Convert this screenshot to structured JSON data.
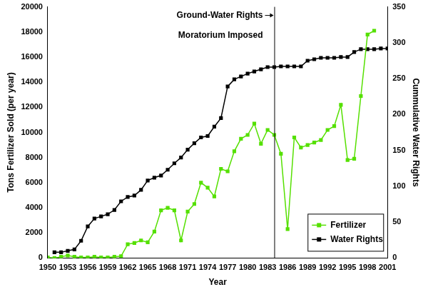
{
  "chart_data": {
    "type": "line",
    "x_label": "Year",
    "y_label": "Tons Fertilizer Sold (per year)",
    "y2_label": "Cummulative Water Rights",
    "x": [
      1950,
      1951,
      1952,
      1953,
      1954,
      1955,
      1956,
      1957,
      1958,
      1959,
      1960,
      1961,
      1962,
      1963,
      1964,
      1965,
      1966,
      1967,
      1968,
      1969,
      1970,
      1971,
      1972,
      1973,
      1974,
      1975,
      1976,
      1977,
      1978,
      1979,
      1980,
      1981,
      1982,
      1983,
      1984,
      1985,
      1986,
      1987,
      1988,
      1989,
      1990,
      1991,
      1992,
      1993,
      1994,
      1995,
      1996,
      1997,
      1998,
      1999,
      2000,
      2001
    ],
    "xlim": [
      1950,
      2001
    ],
    "xticks": [
      1950,
      1953,
      1956,
      1959,
      1962,
      1965,
      1968,
      1971,
      1974,
      1977,
      1980,
      1983,
      1986,
      1989,
      1992,
      1995,
      1998,
      2001
    ],
    "ylim": [
      0,
      20000
    ],
    "yticks": [
      0,
      2000,
      4000,
      6000,
      8000,
      10000,
      12000,
      14000,
      16000,
      18000,
      20000
    ],
    "y2lim": [
      0,
      350
    ],
    "y2ticks": [
      0,
      50,
      100,
      150,
      200,
      250,
      300,
      350
    ],
    "grid": false,
    "legend": "lower right",
    "series": [
      {
        "name": "Fertilizer",
        "color": "#55e000",
        "marker": "square",
        "axis": "y",
        "values": [
          50,
          0,
          100,
          200,
          100,
          50,
          50,
          100,
          50,
          50,
          100,
          150,
          1100,
          1200,
          1400,
          1250,
          2100,
          3800,
          4000,
          3800,
          1400,
          3700,
          4300,
          6000,
          5600,
          4900,
          7100,
          6900,
          8500,
          9500,
          9800,
          10700,
          9100,
          10200,
          9800,
          8300,
          2300,
          9600,
          8800,
          9000,
          9200,
          9400,
          10200,
          10500,
          12200,
          7800,
          7900,
          12900,
          17800,
          18100,
          null,
          null
        ]
      },
      {
        "name": "Water Rights",
        "color": "#000000",
        "marker": "square",
        "axis": "y2",
        "values": [
          null,
          8,
          8,
          10,
          12,
          24,
          44,
          55,
          58,
          61,
          67,
          79,
          85,
          87,
          95,
          108,
          112,
          115,
          123,
          132,
          140,
          151,
          160,
          168,
          170,
          183,
          195,
          239,
          249,
          253,
          257,
          260,
          263,
          266,
          266,
          267,
          267,
          267,
          267,
          275,
          277,
          279,
          279,
          279,
          280,
          280,
          287,
          291,
          291,
          291,
          292,
          292
        ]
      }
    ],
    "annotations": [
      {
        "x": 1984,
        "lines": [
          "Ground-Water Rights",
          "Moratorium Imposed"
        ]
      }
    ]
  }
}
